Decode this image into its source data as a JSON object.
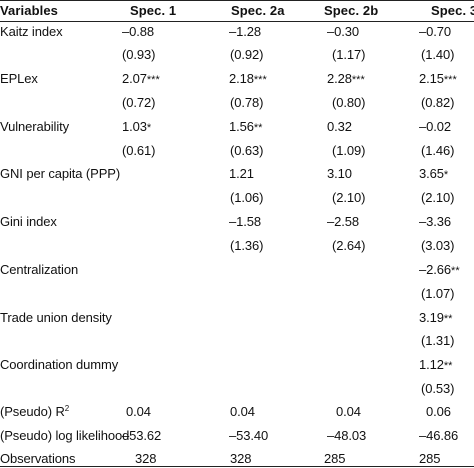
{
  "header": {
    "variables": "Variables",
    "spec1": "Spec. 1",
    "spec2a": "Spec. 2a",
    "spec2b": "Spec. 2b",
    "spec3": "Spec. 3"
  },
  "rows": [
    {
      "label": "Kaitz index",
      "v": [
        "–0.88",
        "–1.28",
        "–0.30",
        "–0.70"
      ],
      "stars": [
        "",
        "",
        "",
        ""
      ],
      "se": [
        "(0.93)",
        "(0.92)",
        "(1.17)",
        "(1.40)"
      ]
    },
    {
      "label": "EPLex",
      "v": [
        "2.07",
        "2.18",
        "2.28",
        "2.15"
      ],
      "stars": [
        "***",
        "***",
        "***",
        "***"
      ],
      "se": [
        "(0.72)",
        "(0.78)",
        "(0.80)",
        "(0.82)"
      ]
    },
    {
      "label": "Vulnerability",
      "v": [
        "1.03",
        "1.56",
        "0.32",
        "–0.02"
      ],
      "stars": [
        "*",
        "**",
        "",
        ""
      ],
      "se": [
        "(0.61)",
        "(0.63)",
        "(1.09)",
        "(1.46)"
      ]
    },
    {
      "label": "GNI per capita (PPP)",
      "v": [
        "",
        "1.21",
        "3.10",
        "3.65"
      ],
      "stars": [
        "",
        "",
        "",
        "*"
      ],
      "se": [
        "",
        "(1.06)",
        "(2.10)",
        "(2.10)"
      ]
    },
    {
      "label": "Gini index",
      "v": [
        "",
        "–1.58",
        "–2.58",
        "–3.36"
      ],
      "stars": [
        "",
        "",
        "",
        ""
      ],
      "se": [
        "",
        "(1.36)",
        "(2.64)",
        "(3.03)"
      ]
    },
    {
      "label": "Centralization",
      "v": [
        "",
        "",
        "",
        "–2.66"
      ],
      "stars": [
        "",
        "",
        "",
        "**"
      ],
      "se": [
        "",
        "",
        "",
        "(1.07)"
      ]
    },
    {
      "label": "Trade union density",
      "v": [
        "",
        "",
        "",
        "3.19"
      ],
      "stars": [
        "",
        "",
        "",
        "**"
      ],
      "se": [
        "",
        "",
        "",
        "(1.31)"
      ]
    },
    {
      "label": "Coordination dummy",
      "v": [
        "",
        "",
        "",
        "1.12"
      ],
      "stars": [
        "",
        "",
        "",
        "**"
      ],
      "se": [
        "",
        "",
        "",
        "(0.53)"
      ]
    }
  ],
  "footer": {
    "r2_label": "(Pseudo) R",
    "r2_sup": "2",
    "r2": [
      "0.04",
      "0.04",
      "0.04",
      "0.06"
    ],
    "ll_label": "(Pseudo) log likelihood",
    "ll": [
      "–53.62",
      "–53.40",
      "–48.03",
      "–46.86"
    ],
    "obs_label": "Observations",
    "obs": [
      "328",
      "328",
      "285",
      "285"
    ]
  }
}
